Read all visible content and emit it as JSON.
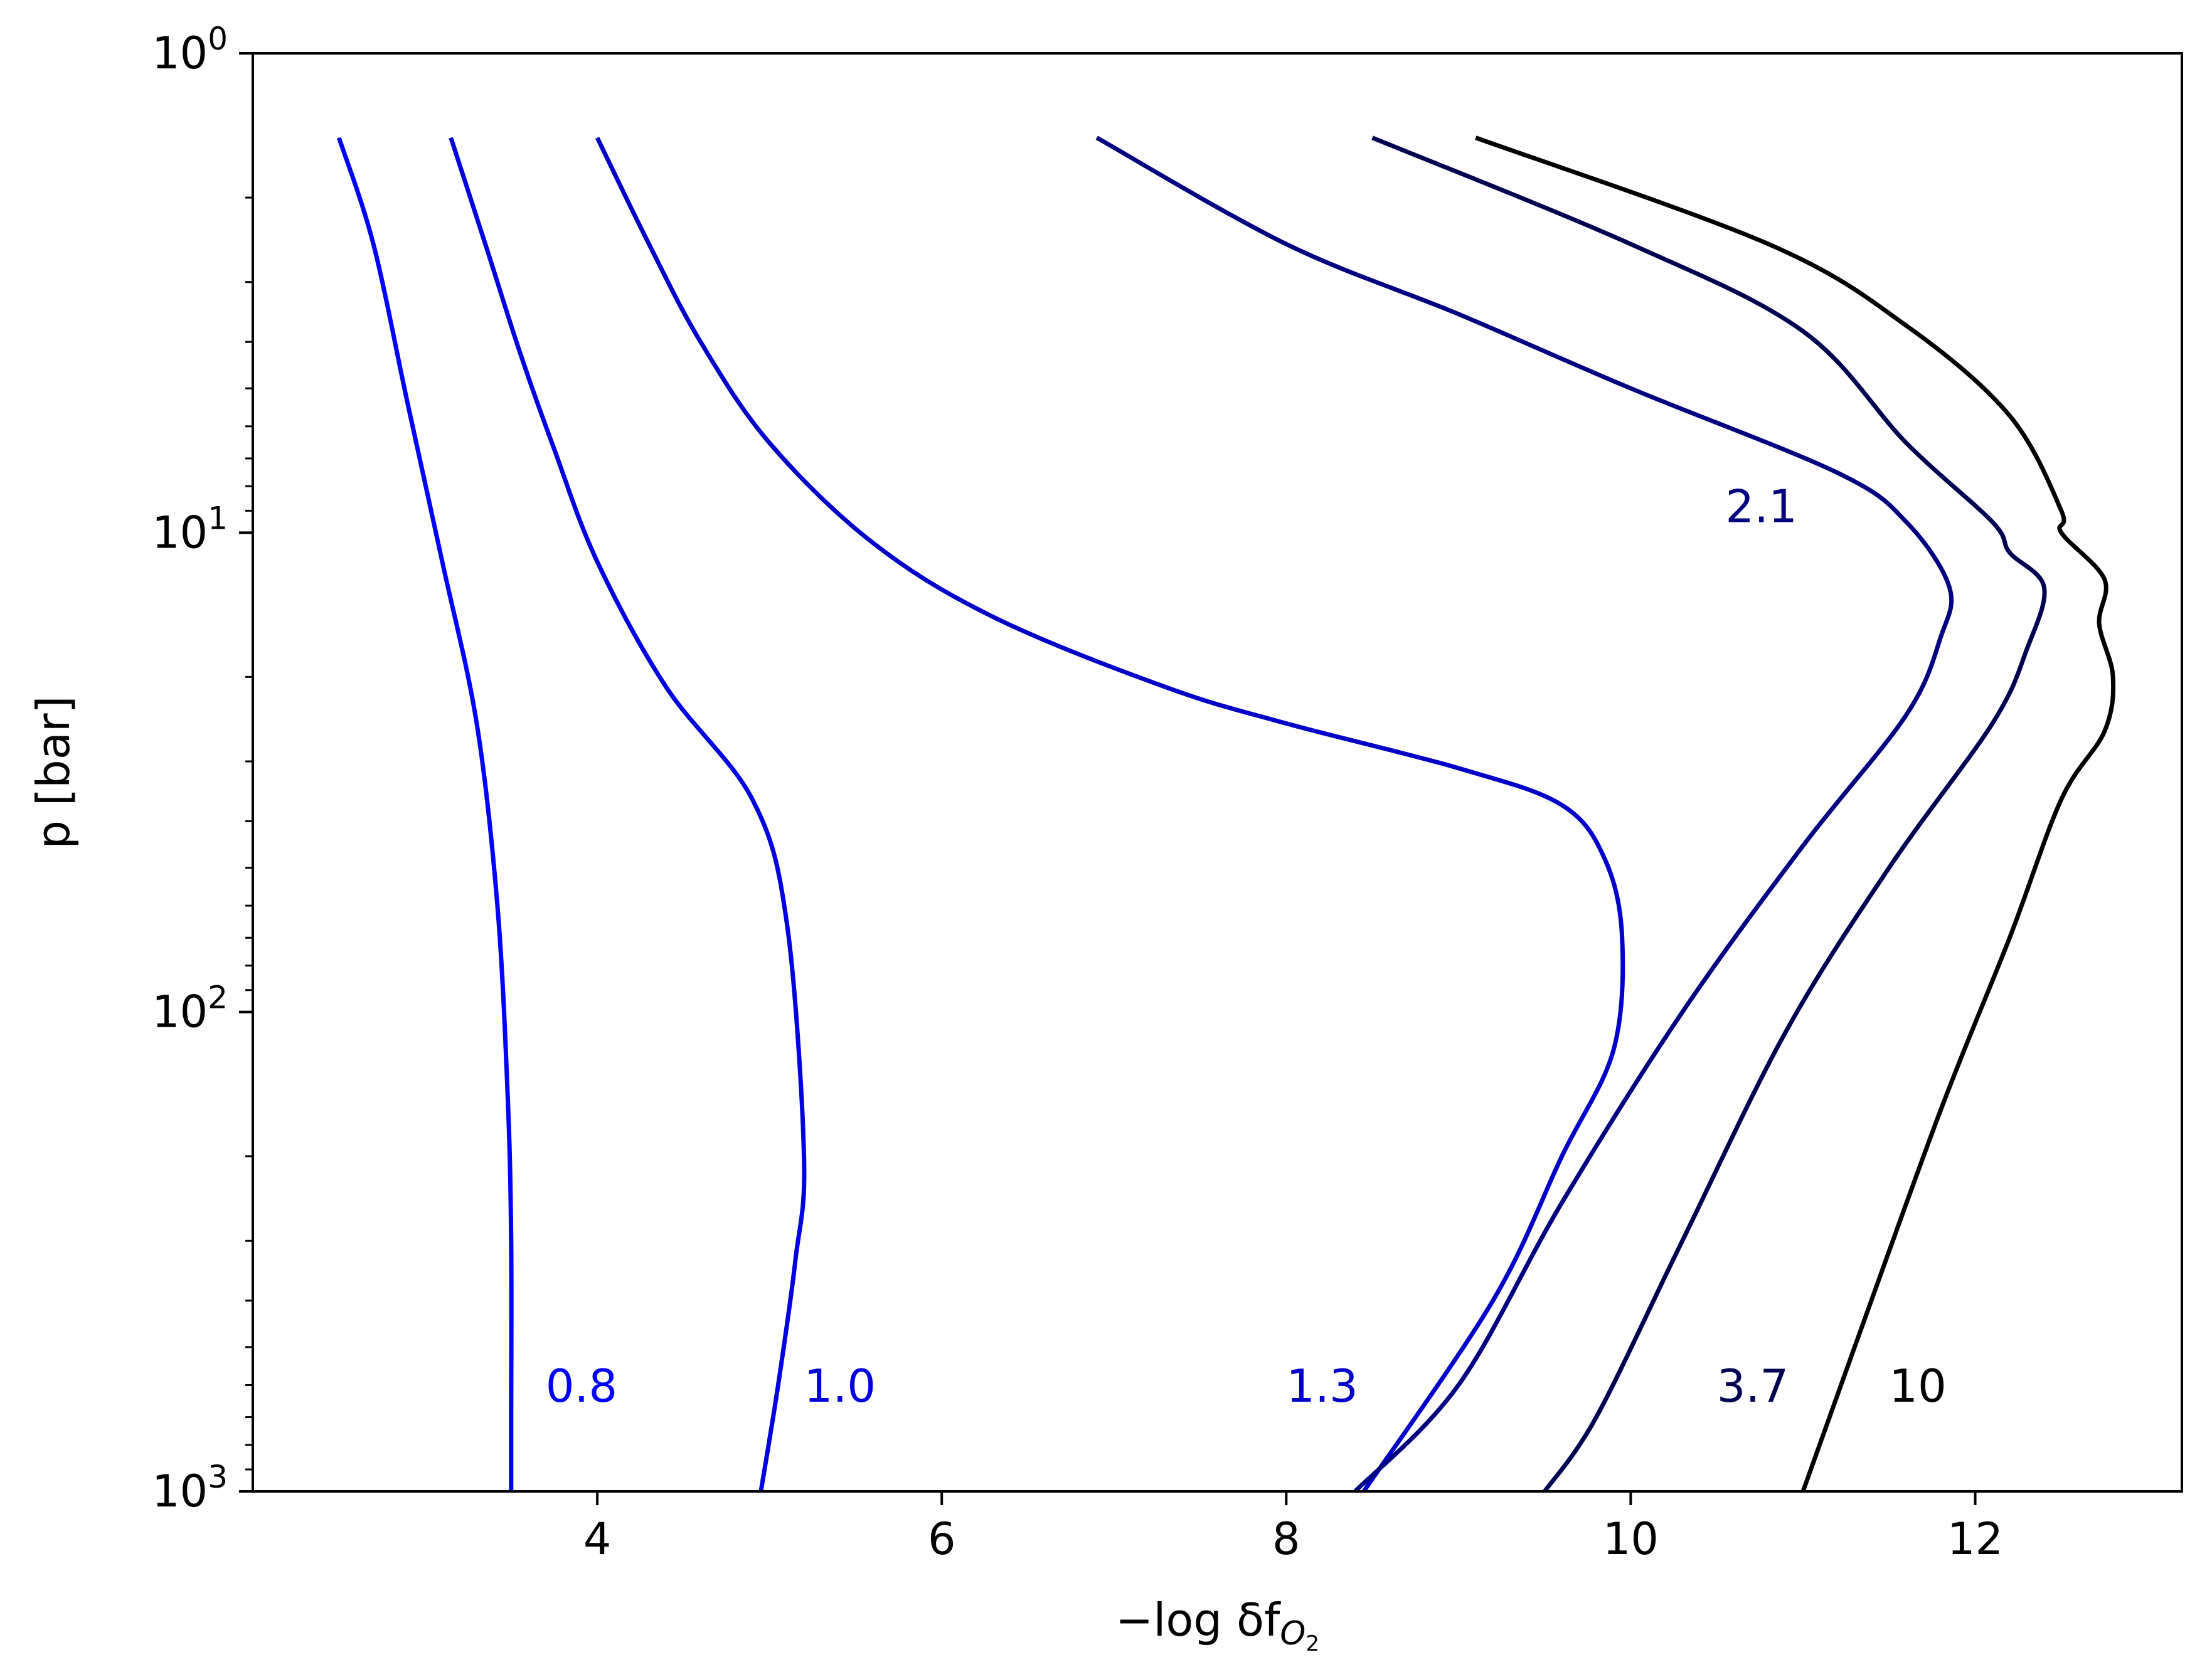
{
  "chart_data": {
    "type": "line",
    "xlabel": "−log δf",
    "xlabel_subscript": "O",
    "xlabel_subsubscript": "2",
    "ylabel": "p [bar]",
    "y_scale": "log",
    "y_inverted": true,
    "xlim": [
      2.0,
      13.2
    ],
    "ylim": [
      1,
      1000
    ],
    "x_ticks": [
      4,
      6,
      8,
      10,
      12
    ],
    "x_tick_labels": [
      "4",
      "6",
      "8",
      "10",
      "12"
    ],
    "y_ticks": [
      1,
      10,
      100,
      1000
    ],
    "y_tick_labels": [
      {
        "base": "10",
        "exp": "0"
      },
      {
        "base": "10",
        "exp": "1"
      },
      {
        "base": "10",
        "exp": "2"
      },
      {
        "base": "10",
        "exp": "3"
      }
    ],
    "grid": false,
    "legend": "none",
    "series": [
      {
        "name": "0.8",
        "color": "#0000ff",
        "label_at": [
          3.7,
          650
        ],
        "points": [
          [
            2.5,
            1.5
          ],
          [
            2.7,
            2.5
          ],
          [
            2.9,
            5.4
          ],
          [
            3.1,
            11.5
          ],
          [
            3.3,
            25
          ],
          [
            3.42,
            60
          ],
          [
            3.48,
            150
          ],
          [
            3.5,
            300
          ],
          [
            3.5,
            700
          ],
          [
            3.5,
            1000
          ]
        ]
      },
      {
        "name": "1.0",
        "color": "#0000e0",
        "label_at": [
          5.2,
          650
        ],
        "points": [
          [
            3.15,
            1.5
          ],
          [
            3.35,
            2.5
          ],
          [
            3.55,
            4.2
          ],
          [
            3.75,
            6.7
          ],
          [
            4.0,
            11.5
          ],
          [
            4.4,
            21
          ],
          [
            4.9,
            36
          ],
          [
            5.1,
            65
          ],
          [
            5.2,
            200
          ],
          [
            5.15,
            330
          ],
          [
            5.05,
            600
          ],
          [
            4.95,
            1000
          ]
        ]
      },
      {
        "name": "1.3",
        "color": "#0000c8",
        "label_at": [
          8.0,
          650
        ],
        "points": [
          [
            4.0,
            1.5
          ],
          [
            4.3,
            2.5
          ],
          [
            4.6,
            4.0
          ],
          [
            5.0,
            6.5
          ],
          [
            5.6,
            10.5
          ],
          [
            6.3,
            15
          ],
          [
            7.3,
            21
          ],
          [
            8.0,
            25
          ],
          [
            9.0,
            31
          ],
          [
            9.6,
            37
          ],
          [
            9.85,
            48
          ],
          [
            9.95,
            70
          ],
          [
            9.9,
            120
          ],
          [
            9.6,
            200
          ],
          [
            9.2,
            400
          ],
          [
            8.45,
            1000
          ]
        ]
      },
      {
        "name": "2.1",
        "color": "#000080",
        "label_at": [
          10.55,
          9.5
        ],
        "points": [
          [
            6.9,
            1.5
          ],
          [
            8.0,
            2.5
          ],
          [
            9.0,
            3.5
          ],
          [
            10.0,
            5.0
          ],
          [
            11.2,
            7.5
          ],
          [
            11.6,
            9.5
          ],
          [
            11.85,
            13
          ],
          [
            11.8,
            16.5
          ],
          [
            11.6,
            24
          ],
          [
            11.0,
            45
          ],
          [
            10.3,
            100
          ],
          [
            9.6,
            250
          ],
          [
            9.0,
            600
          ],
          [
            8.4,
            1000
          ]
        ]
      },
      {
        "name": "3.7",
        "color": "#000050",
        "label_at": [
          10.5,
          650
        ],
        "points": [
          [
            8.5,
            1.5
          ],
          [
            10.0,
            2.5
          ],
          [
            11.0,
            3.8
          ],
          [
            11.6,
            6.5
          ],
          [
            12.1,
            9.5
          ],
          [
            12.2,
            11
          ],
          [
            12.4,
            13
          ],
          [
            12.3,
            17.5
          ],
          [
            12.1,
            25
          ],
          [
            11.5,
            50
          ],
          [
            10.9,
            110
          ],
          [
            10.3,
            300
          ],
          [
            9.8,
            700
          ],
          [
            9.5,
            1000
          ]
        ]
      },
      {
        "name": "10",
        "color": "#000000",
        "label_at": [
          11.5,
          650
        ],
        "points": [
          [
            9.1,
            1.5
          ],
          [
            10.8,
            2.5
          ],
          [
            11.6,
            3.7
          ],
          [
            12.2,
            5.7
          ],
          [
            12.5,
            9.0
          ],
          [
            12.5,
            10.0
          ],
          [
            12.75,
            12.5
          ],
          [
            12.72,
            15.5
          ],
          [
            12.8,
            20
          ],
          [
            12.75,
            26
          ],
          [
            12.5,
            36
          ],
          [
            12.2,
            70
          ],
          [
            11.8,
            160
          ],
          [
            11.3,
            500
          ],
          [
            11.0,
            1000
          ]
        ]
      }
    ]
  }
}
